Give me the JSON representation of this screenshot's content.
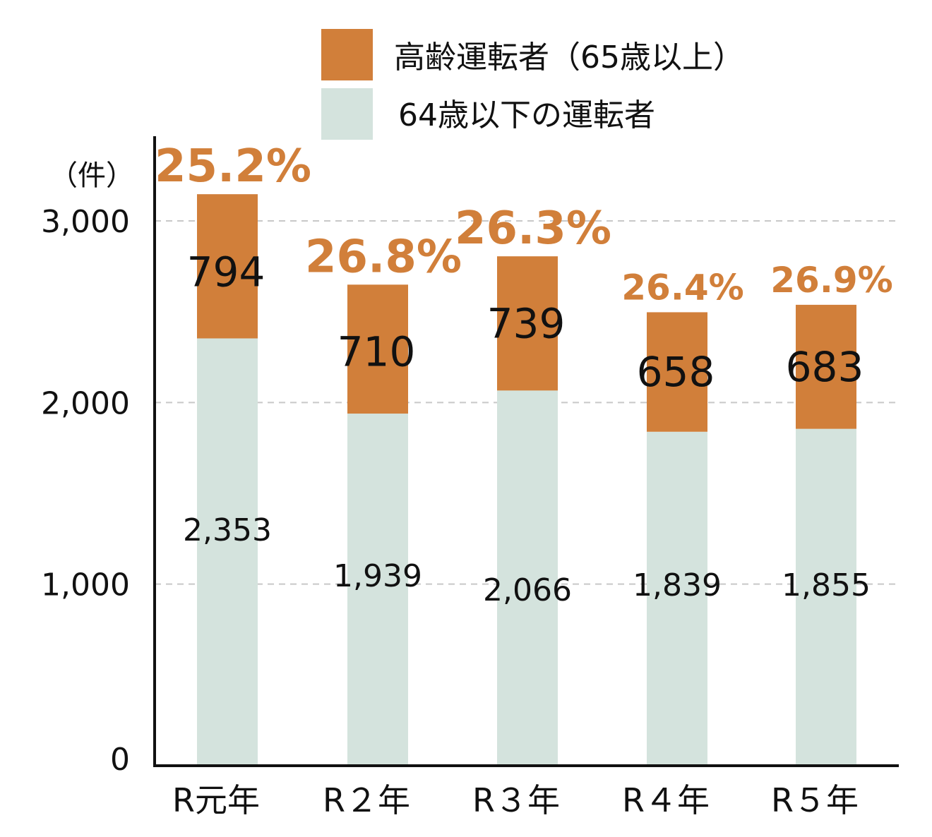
{
  "chart_data": {
    "type": "bar",
    "stacked": true,
    "categories": [
      "R元年",
      "R２年",
      "R３年",
      "R４年",
      "R５年"
    ],
    "series": [
      {
        "name": "64歳以下の運転者",
        "color": "#d4e3dd",
        "values": [
          2353,
          1939,
          2066,
          1839,
          1855
        ],
        "labels": [
          "2,353",
          "1,939",
          "2,066",
          "1,839",
          "1,855"
        ]
      },
      {
        "name": "高齢運転者（65歳以上）",
        "color": "#d17f3a",
        "values": [
          794,
          710,
          739,
          658,
          683
        ],
        "labels": [
          "794",
          "710",
          "739",
          "658",
          "683"
        ]
      }
    ],
    "percentages": [
      "25.2%",
      "26.8%",
      "26.3%",
      "26.4%",
      "26.9%"
    ],
    "percent_color": "#d17f3a",
    "ylim": [
      0,
      3000
    ],
    "yticks": [
      0,
      1000,
      2000,
      3000
    ],
    "ytick_labels": [
      "0",
      "1,000",
      "2,000",
      "3,000"
    ],
    "unit_label": "（件）",
    "legend": [
      "高齢運転者（65歳以上）",
      "64歳以下の運転者"
    ],
    "legend_position": "top-right",
    "grid": true
  }
}
